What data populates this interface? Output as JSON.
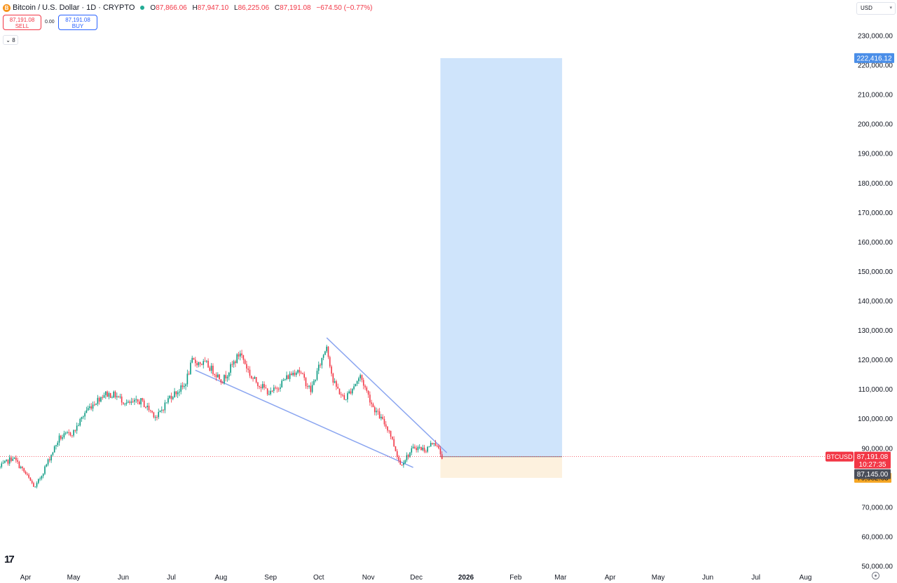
{
  "header": {
    "coin_glyph": "B",
    "symbol_title": "Bitcoin / U.S. Dollar · 1D · CRYPTO",
    "market_status_color": "#22ab94",
    "ohlc": [
      {
        "label": "O",
        "value": "87,866.06"
      },
      {
        "label": "H",
        "value": "87,947.10"
      },
      {
        "label": "L",
        "value": "86,225.06"
      },
      {
        "label": "C",
        "value": "87,191.08"
      }
    ],
    "change": "−674.50 (−0.77%)"
  },
  "trade": {
    "sell_price": "87,191.08",
    "sell_label": "SELL",
    "spread": "0.00",
    "buy_price": "87,191.08",
    "buy_label": "BUY"
  },
  "indicators_toggle": {
    "icon": "chevron-down-icon",
    "count": "8"
  },
  "currency": {
    "value": "USD",
    "icon": "chevron-down-icon"
  },
  "chart_data": {
    "type": "candlestick",
    "instrument": "BTCUSD",
    "interval": "1D",
    "grid": false,
    "y_scale": "linear",
    "ylim": [
      50000,
      235000
    ],
    "y_ticks": [
      "230,000.00",
      "220,000.00",
      "210,000.00",
      "200,000.00",
      "190,000.00",
      "180,000.00",
      "170,000.00",
      "160,000.00",
      "150,000.00",
      "140,000.00",
      "130,000.00",
      "120,000.00",
      "110,000.00",
      "100,000.00",
      "90,000.00",
      "70,000.00",
      "60,000.00",
      "50,000.00"
    ],
    "x_tick_labels": [
      "Apr",
      "May",
      "Jun",
      "Jul",
      "Aug",
      "Sep",
      "Oct",
      "Nov",
      "Dec",
      "2026",
      "Feb",
      "Mar",
      "Apr",
      "May",
      "Jun",
      "Jul",
      "Aug"
    ],
    "xlim": [
      "2025-03-16",
      "2026-08-31"
    ],
    "x_ticks": [
      "2025-04-01",
      "2025-05-01",
      "2025-06-01",
      "2025-07-01",
      "2025-08-01",
      "2025-09-01",
      "2025-10-01",
      "2025-11-01",
      "2025-12-01",
      "2026-01-01",
      "2026-02-01",
      "2026-03-01",
      "2026-04-01",
      "2026-05-01",
      "2026-06-01",
      "2026-07-01",
      "2026-08-01"
    ],
    "price_path": [
      [
        "2025-03-16",
        83500
      ],
      [
        "2025-03-24",
        87000
      ],
      [
        "2025-03-31",
        82000
      ],
      [
        "2025-04-07",
        76500
      ],
      [
        "2025-04-14",
        84500
      ],
      [
        "2025-04-22",
        93500
      ],
      [
        "2025-05-01",
        95500
      ],
      [
        "2025-05-09",
        103000
      ],
      [
        "2025-05-20",
        108500
      ],
      [
        "2025-05-27",
        108000
      ],
      [
        "2025-06-04",
        105000
      ],
      [
        "2025-06-12",
        106000
      ],
      [
        "2025-06-22",
        100500
      ],
      [
        "2025-06-30",
        107500
      ],
      [
        "2025-07-09",
        111000
      ],
      [
        "2025-07-14",
        119500
      ],
      [
        "2025-07-23",
        118500
      ],
      [
        "2025-08-02",
        113000
      ],
      [
        "2025-08-13",
        122500
      ],
      [
        "2025-08-20",
        114000
      ],
      [
        "2025-09-01",
        108500
      ],
      [
        "2025-09-10",
        113500
      ],
      [
        "2025-09-18",
        117000
      ],
      [
        "2025-09-26",
        109500
      ],
      [
        "2025-10-06",
        125000
      ],
      [
        "2025-10-10",
        112500
      ],
      [
        "2025-10-17",
        106500
      ],
      [
        "2025-10-27",
        114500
      ],
      [
        "2025-11-04",
        104000
      ],
      [
        "2025-11-14",
        96000
      ],
      [
        "2025-11-21",
        84500
      ],
      [
        "2025-11-30",
        90500
      ],
      [
        "2025-12-07",
        89500
      ],
      [
        "2025-12-12",
        92500
      ],
      [
        "2025-12-17",
        87191
      ]
    ],
    "current_price": {
      "symbol": "BTCUSD",
      "price": "87,191.08",
      "countdown": "10:27:35",
      "value": 87191.08,
      "color": "#f23645"
    },
    "position_tool": {
      "type": "long_position",
      "start": "2025-12-16",
      "end": "2026-03-02",
      "entry": 87145.0,
      "entry_label": "87,145.00",
      "target": 222416.12,
      "target_label": "222,416.12",
      "stop": 79982.63,
      "stop_label": "79,982.63",
      "target_color": "#cfe4fb",
      "stop_color": "#fdf1de"
    },
    "trendlines": [
      {
        "from": [
          "2025-10-06",
          127500
        ],
        "to": [
          "2025-12-20",
          88500
        ],
        "color": "#8aa5f0"
      },
      {
        "from": [
          "2025-07-16",
          116500
        ],
        "to": [
          "2025-11-29",
          83500
        ],
        "color": "#8aa5f0"
      }
    ],
    "colors": {
      "up": "#089981",
      "down": "#f23645",
      "axis_text": "#131722"
    }
  },
  "branding": {
    "logo_text": "17",
    "settings_icon": "gear-icon"
  }
}
